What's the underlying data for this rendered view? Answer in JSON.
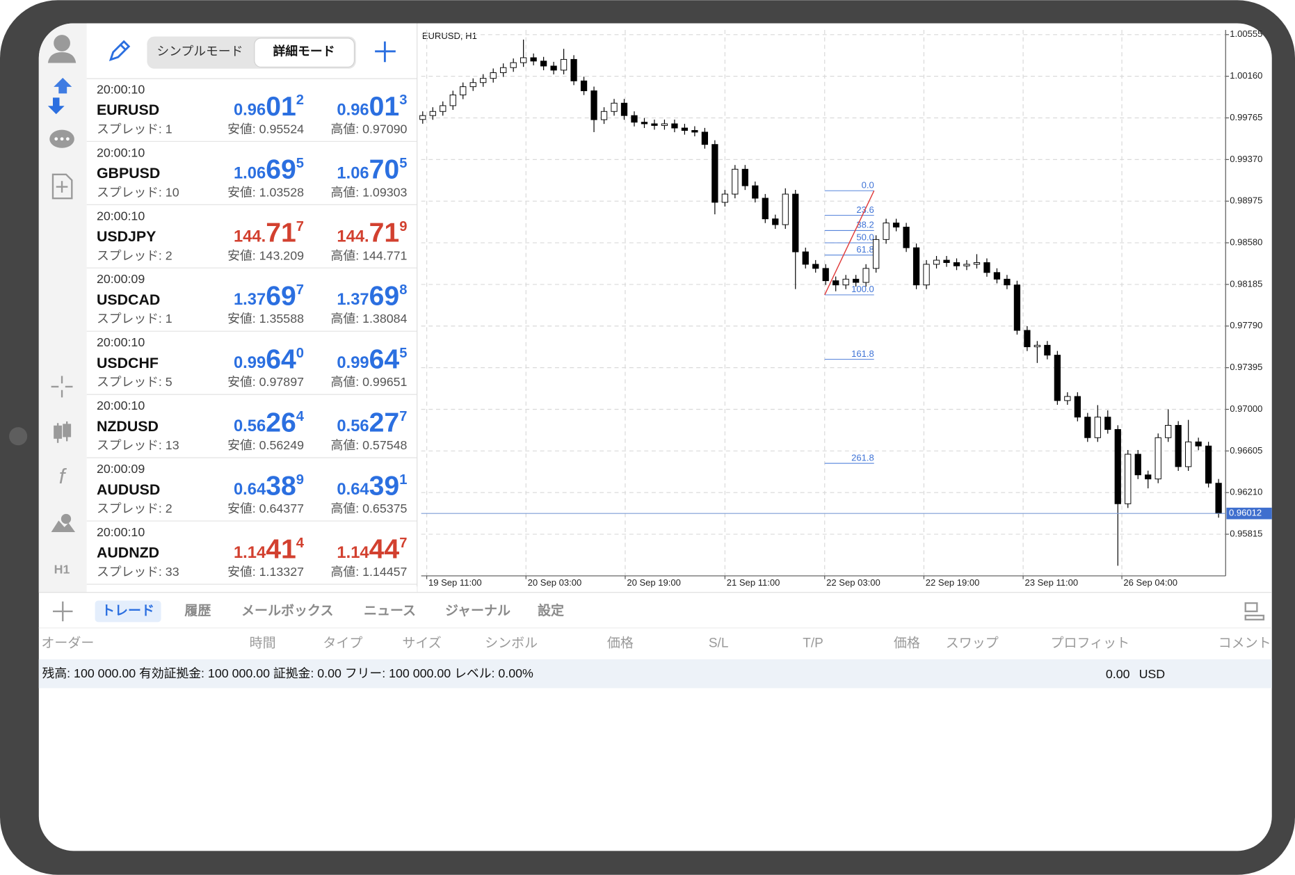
{
  "app": {
    "toolbar": {
      "modes": [
        "シンプルモード",
        "詳細モード"
      ],
      "active_mode": 1
    },
    "sidebar": {
      "timeframe": "H1"
    },
    "quotes": [
      {
        "time": "20:00:10",
        "symbol": "EURUSD",
        "spread": "スプレッド: 1",
        "bid": [
          "0.96",
          "01",
          "2"
        ],
        "ask": [
          "0.96",
          "01",
          "3"
        ],
        "low": "安値: 0.95524",
        "high": "高値: 0.97090",
        "color": "#2b6fe0"
      },
      {
        "time": "20:00:10",
        "symbol": "GBPUSD",
        "spread": "スプレッド: 10",
        "bid": [
          "1.06",
          "69",
          "5"
        ],
        "ask": [
          "1.06",
          "70",
          "5"
        ],
        "low": "安値: 1.03528",
        "high": "高値: 1.09303",
        "color": "#2b6fe0"
      },
      {
        "time": "20:00:10",
        "symbol": "USDJPY",
        "spread": "スプレッド: 2",
        "bid": [
          "144.",
          "71",
          "7"
        ],
        "ask": [
          "144.",
          "71",
          "9"
        ],
        "low": "安値: 143.209",
        "high": "高値: 144.771",
        "color": "#d2402f"
      },
      {
        "time": "20:00:09",
        "symbol": "USDCAD",
        "spread": "スプレッド: 1",
        "bid": [
          "1.37",
          "69",
          "7"
        ],
        "ask": [
          "1.37",
          "69",
          "8"
        ],
        "low": "安値: 1.35588",
        "high": "高値: 1.38084",
        "color": "#2b6fe0"
      },
      {
        "time": "20:00:10",
        "symbol": "USDCHF",
        "spread": "スプレッド: 5",
        "bid": [
          "0.99",
          "64",
          "0"
        ],
        "ask": [
          "0.99",
          "64",
          "5"
        ],
        "low": "安値: 0.97897",
        "high": "高値: 0.99651",
        "color": "#2b6fe0"
      },
      {
        "time": "20:00:10",
        "symbol": "NZDUSD",
        "spread": "スプレッド: 13",
        "bid": [
          "0.56",
          "26",
          "4"
        ],
        "ask": [
          "0.56",
          "27",
          "7"
        ],
        "low": "安値: 0.56249",
        "high": "高値: 0.57548",
        "color": "#2b6fe0"
      },
      {
        "time": "20:00:09",
        "symbol": "AUDUSD",
        "spread": "スプレッド: 2",
        "bid": [
          "0.64",
          "38",
          "9"
        ],
        "ask": [
          "0.64",
          "39",
          "1"
        ],
        "low": "安値: 0.64377",
        "high": "高値: 0.65375",
        "color": "#2b6fe0"
      },
      {
        "time": "20:00:10",
        "symbol": "AUDNZD",
        "spread": "スプレッド: 33",
        "bid": [
          "1.14",
          "41",
          "4"
        ],
        "ask": [
          "1.14",
          "44",
          "7"
        ],
        "low": "安値: 1.13327",
        "high": "高値: 1.14457",
        "color": "#d2402f"
      }
    ],
    "tabs": [
      "トレード",
      "履歴",
      "メールボックス",
      "ニュース",
      "ジャーナル",
      "設定"
    ],
    "active_tab": 0,
    "columns": [
      "オーダー",
      "時間",
      "タイプ",
      "サイズ",
      "シンボル",
      "価格",
      "S/L",
      "T/P",
      "価格",
      "スワップ",
      "プロフィット",
      "コメント"
    ],
    "balance": "残高: 100 000.00 有効証拠金: 100 000.00 証拠金: 0.00 フリー: 100 000.00 レベル: 0.00%",
    "profit": "0.00",
    "currency": "USD"
  },
  "chart_data": {
    "type": "candlestick",
    "title": "EURUSD, H1",
    "up_color": "#ffffff",
    "down_color": "#000000",
    "grid": true,
    "xlim": [
      -0.15,
      79.7
    ],
    "ylim": [
      0.9542,
      1.006
    ],
    "xticks": [
      {
        "value": 0.4,
        "label": "19 Sep 11:00"
      },
      {
        "value": 10.25,
        "label": "20 Sep 03:00"
      },
      {
        "value": 20.1,
        "label": "20 Sep 19:00"
      },
      {
        "value": 30.0,
        "label": "21 Sep 11:00"
      },
      {
        "value": 39.9,
        "label": "22 Sep 03:00"
      },
      {
        "value": 49.75,
        "label": "22 Sep 19:00"
      },
      {
        "value": 59.6,
        "label": "23 Sep 11:00"
      },
      {
        "value": 69.4,
        "label": "26 Sep 04:00"
      }
    ],
    "yticks": [
      {
        "value": 1.00555,
        "label": "1.00555"
      },
      {
        "value": 1.0016,
        "label": "1.00160"
      },
      {
        "value": 0.99765,
        "label": "0.99765"
      },
      {
        "value": 0.9937,
        "label": "0.99370"
      },
      {
        "value": 0.98975,
        "label": "0.98975"
      },
      {
        "value": 0.9858,
        "label": "0.98580"
      },
      {
        "value": 0.98185,
        "label": "0.98185"
      },
      {
        "value": 0.9779,
        "label": "0.97790"
      },
      {
        "value": 0.97395,
        "label": "0.97395"
      },
      {
        "value": 0.97,
        "label": "0.97000"
      },
      {
        "value": 0.96605,
        "label": "0.96605"
      },
      {
        "value": 0.9621,
        "label": "0.96210"
      },
      {
        "value": 0.95815,
        "label": "0.95815"
      }
    ],
    "current_price": {
      "value": 0.96012,
      "label": "0.96012"
    },
    "open": [
      0.9975,
      0.99787,
      0.99826,
      0.99881,
      0.99983,
      1.00061,
      1.001,
      1.0014,
      1.00194,
      1.00242,
      1.00289,
      1.00336,
      1.00304,
      1.00257,
      1.00218,
      1.0032,
      1.00116,
      1.00022,
      0.99748,
      0.99826,
      0.99905,
      0.99787,
      0.99724,
      0.99709,
      0.99693,
      0.99709,
      0.99669,
      0.99646,
      0.9963,
      0.99513,
      0.98964,
      0.99042,
      0.99278,
      0.99121,
      0.99003,
      0.98807,
      0.98752,
      0.99042,
      0.98494,
      0.98376,
      0.98337,
      0.9822,
      0.9818,
      0.98235,
      0.98204,
      0.98337,
      0.98611,
      0.98768,
      0.98729,
      0.98533,
      0.9818,
      0.98376,
      0.98415,
      0.98392,
      0.98361,
      0.98376,
      0.98392,
      0.98298,
      0.98235,
      0.9818,
      0.97749,
      0.97593,
      0.97608,
      0.97514,
      0.97083,
      0.97122,
      0.96926,
      0.96731,
      0.96926,
      0.96809,
      0.96104,
      0.96574,
      0.96378,
      0.96339,
      0.96731,
      0.96848,
      0.96456,
      0.96691,
      0.96652,
      0.96299
    ],
    "high": [
      0.99827,
      0.99866,
      0.99921,
      1.00023,
      1.00101,
      1.0014,
      1.0018,
      1.00234,
      1.00282,
      1.00329,
      1.00508,
      1.00376,
      1.00344,
      1.00297,
      1.0042,
      1.0036,
      1.00156,
      1.00062,
      0.99866,
      0.99945,
      0.99945,
      0.99827,
      0.99764,
      0.99749,
      0.99749,
      0.99749,
      0.99709,
      0.99686,
      0.9967,
      0.99553,
      0.99082,
      0.99318,
      0.99318,
      0.99161,
      0.99043,
      0.98847,
      0.99097,
      0.99082,
      0.98534,
      0.98416,
      0.98377,
      0.9826,
      0.98275,
      0.98275,
      0.98377,
      0.98651,
      0.98808,
      0.98808,
      0.98769,
      0.98573,
      0.98416,
      0.98455,
      0.98455,
      0.98432,
      0.98416,
      0.98472,
      0.98432,
      0.98338,
      0.98275,
      0.9822,
      0.97789,
      0.97648,
      0.97648,
      0.97554,
      0.97162,
      0.97162,
      0.96966,
      0.9704,
      0.9699,
      0.96849,
      0.96614,
      0.96614,
      0.96418,
      0.96771,
      0.97,
      0.96888,
      0.969,
      0.96731,
      0.96692,
      0.96339
    ],
    "low": [
      0.9971,
      0.99747,
      0.99786,
      0.99841,
      0.99943,
      1.00021,
      1.0006,
      1.001,
      1.00154,
      1.00202,
      1.00249,
      1.00264,
      1.00217,
      1.00178,
      1.00178,
      1.00076,
      0.99982,
      0.9963,
      0.99708,
      0.99786,
      0.99747,
      0.99684,
      0.99669,
      0.99653,
      0.99653,
      0.99629,
      0.99606,
      0.9959,
      0.99473,
      0.9885,
      0.98924,
      0.99002,
      0.99081,
      0.98963,
      0.98767,
      0.98712,
      0.98712,
      0.98141,
      0.98336,
      0.98297,
      0.9818,
      0.9812,
      0.9814,
      0.98164,
      0.98164,
      0.98297,
      0.98571,
      0.98689,
      0.98493,
      0.9814,
      0.9814,
      0.98336,
      0.98352,
      0.98321,
      0.98321,
      0.98336,
      0.98258,
      0.98195,
      0.9814,
      0.97709,
      0.97553,
      0.9744,
      0.97474,
      0.97043,
      0.97043,
      0.96886,
      0.96691,
      0.96691,
      0.96769,
      0.95516,
      0.96064,
      0.96338,
      0.9625,
      0.96299,
      0.96691,
      0.96416,
      0.96416,
      0.96612,
      0.96259,
      0.95972
    ],
    "close": [
      0.99787,
      0.99826,
      0.99881,
      0.99983,
      1.00061,
      1.001,
      1.0014,
      1.00194,
      1.00242,
      1.00289,
      1.00336,
      1.00304,
      1.00257,
      1.00218,
      1.0032,
      1.00116,
      1.00022,
      0.99748,
      0.99826,
      0.99905,
      0.99787,
      0.99724,
      0.99709,
      0.99693,
      0.99709,
      0.99669,
      0.99646,
      0.9963,
      0.99513,
      0.98964,
      0.99042,
      0.99278,
      0.99121,
      0.99003,
      0.98807,
      0.98752,
      0.99042,
      0.98494,
      0.98376,
      0.98337,
      0.9822,
      0.9818,
      0.98235,
      0.98204,
      0.98337,
      0.98611,
      0.98768,
      0.98729,
      0.98533,
      0.9818,
      0.98376,
      0.98415,
      0.98392,
      0.98361,
      0.98376,
      0.98392,
      0.98298,
      0.98235,
      0.9818,
      0.97749,
      0.97593,
      0.97608,
      0.97514,
      0.97083,
      0.97122,
      0.96926,
      0.96731,
      0.96926,
      0.96809,
      0.96104,
      0.96574,
      0.96378,
      0.96339,
      0.96731,
      0.96848,
      0.96456,
      0.96691,
      0.96652,
      0.96299,
      0.96012
    ],
    "fibonacci": {
      "high": 0.99074,
      "low": 0.98086,
      "x": [
        39.9,
        44.8
      ],
      "color": "#3f73d6",
      "trend_color": "#e03a3a",
      "levels": [
        {
          "value": 0,
          "label": "0.0"
        },
        23.6,
        38.2,
        {
          "value": 50,
          "label": "50.0"
        },
        61.8,
        {
          "value": 100,
          "label": "100.0"
        },
        161.8,
        261.8
      ]
    }
  }
}
